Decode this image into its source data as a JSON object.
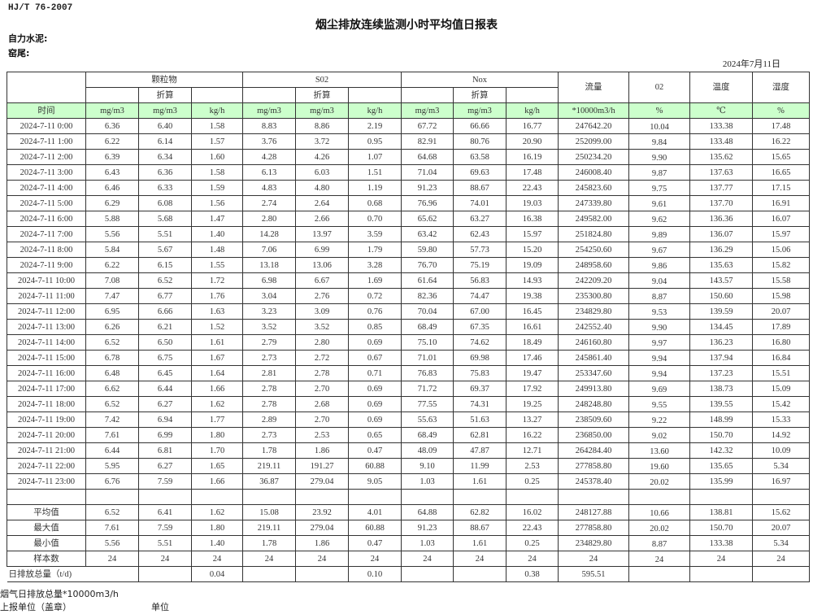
{
  "header": {
    "standard": "HJ/T  76-2007",
    "title": "烟尘排放连续监测小时平均值日报表",
    "company_label": "自力水泥:",
    "location_label": "窑尾:",
    "report_date": "2024年7月11日"
  },
  "table": {
    "groups": {
      "particulate": "颗粒物",
      "so2": "S02",
      "nox": "Nox",
      "flow": "流量",
      "o2": "02",
      "temp": "温度",
      "humidity": "湿度"
    },
    "converted_label": "折算",
    "units": [
      "时间",
      "mg/m3",
      "mg/m3",
      "kg/h",
      "mg/m3",
      "mg/m3",
      "kg/h",
      "mg/m3",
      "mg/m3",
      "kg/h",
      "*10000m3/h",
      "%",
      "℃",
      "%"
    ],
    "rows": [
      [
        "2024-7-11 0:00",
        "6.36",
        "6.40",
        "1.58",
        "8.83",
        "8.86",
        "2.19",
        "67.72",
        "66.66",
        "16.77",
        "247642.20",
        "10.04",
        "133.38",
        "17.48"
      ],
      [
        "2024-7-11 1:00",
        "6.22",
        "6.14",
        "1.57",
        "3.76",
        "3.72",
        "0.95",
        "82.91",
        "80.76",
        "20.90",
        "252099.00",
        "9.84",
        "133.48",
        "16.22"
      ],
      [
        "2024-7-11 2:00",
        "6.39",
        "6.34",
        "1.60",
        "4.28",
        "4.26",
        "1.07",
        "64.68",
        "63.58",
        "16.19",
        "250234.20",
        "9.90",
        "135.62",
        "15.65"
      ],
      [
        "2024-7-11 3:00",
        "6.43",
        "6.36",
        "1.58",
        "6.13",
        "6.03",
        "1.51",
        "71.04",
        "69.63",
        "17.48",
        "246008.40",
        "9.87",
        "137.63",
        "16.65"
      ],
      [
        "2024-7-11 4:00",
        "6.46",
        "6.33",
        "1.59",
        "4.83",
        "4.80",
        "1.19",
        "91.23",
        "88.67",
        "22.43",
        "245823.60",
        "9.75",
        "137.77",
        "17.15"
      ],
      [
        "2024-7-11 5:00",
        "6.29",
        "6.08",
        "1.56",
        "2.74",
        "2.64",
        "0.68",
        "76.96",
        "74.01",
        "19.03",
        "247339.80",
        "9.61",
        "137.70",
        "16.91"
      ],
      [
        "2024-7-11 6:00",
        "5.88",
        "5.68",
        "1.47",
        "2.80",
        "2.66",
        "0.70",
        "65.62",
        "63.27",
        "16.38",
        "249582.00",
        "9.62",
        "136.36",
        "16.07"
      ],
      [
        "2024-7-11 7:00",
        "5.56",
        "5.51",
        "1.40",
        "14.28",
        "13.97",
        "3.59",
        "63.42",
        "62.43",
        "15.97",
        "251824.80",
        "9.89",
        "136.07",
        "15.97"
      ],
      [
        "2024-7-11 8:00",
        "5.84",
        "5.67",
        "1.48",
        "7.06",
        "6.99",
        "1.79",
        "59.80",
        "57.73",
        "15.20",
        "254250.60",
        "9.67",
        "136.29",
        "15.06"
      ],
      [
        "2024-7-11 9:00",
        "6.22",
        "6.15",
        "1.55",
        "13.18",
        "13.06",
        "3.28",
        "76.70",
        "75.19",
        "19.09",
        "248958.60",
        "9.86",
        "135.63",
        "15.82"
      ],
      [
        "2024-7-11 10:00",
        "7.08",
        "6.52",
        "1.72",
        "6.98",
        "6.67",
        "1.69",
        "61.64",
        "56.83",
        "14.93",
        "242209.20",
        "9.04",
        "143.57",
        "15.58"
      ],
      [
        "2024-7-11 11:00",
        "7.47",
        "6.77",
        "1.76",
        "3.04",
        "2.76",
        "0.72",
        "82.36",
        "74.47",
        "19.38",
        "235300.80",
        "8.87",
        "150.60",
        "15.98"
      ],
      [
        "2024-7-11 12:00",
        "6.95",
        "6.66",
        "1.63",
        "3.23",
        "3.09",
        "0.76",
        "70.04",
        "67.00",
        "16.45",
        "234829.80",
        "9.53",
        "139.59",
        "20.07"
      ],
      [
        "2024-7-11 13:00",
        "6.26",
        "6.21",
        "1.52",
        "3.52",
        "3.52",
        "0.85",
        "68.49",
        "67.35",
        "16.61",
        "242552.40",
        "9.90",
        "134.45",
        "17.89"
      ],
      [
        "2024-7-11 14:00",
        "6.52",
        "6.50",
        "1.61",
        "2.79",
        "2.80",
        "0.69",
        "75.10",
        "74.62",
        "18.49",
        "246160.80",
        "9.97",
        "136.23",
        "16.80"
      ],
      [
        "2024-7-11 15:00",
        "6.78",
        "6.75",
        "1.67",
        "2.73",
        "2.72",
        "0.67",
        "71.01",
        "69.98",
        "17.46",
        "245861.40",
        "9.94",
        "137.94",
        "16.84"
      ],
      [
        "2024-7-11 16:00",
        "6.48",
        "6.45",
        "1.64",
        "2.81",
        "2.78",
        "0.71",
        "76.83",
        "75.83",
        "19.47",
        "253347.60",
        "9.94",
        "137.23",
        "15.51"
      ],
      [
        "2024-7-11 17:00",
        "6.62",
        "6.44",
        "1.66",
        "2.78",
        "2.70",
        "0.69",
        "71.72",
        "69.37",
        "17.92",
        "249913.80",
        "9.69",
        "138.73",
        "15.09"
      ],
      [
        "2024-7-11 18:00",
        "6.52",
        "6.27",
        "1.62",
        "2.78",
        "2.68",
        "0.69",
        "77.55",
        "74.31",
        "19.25",
        "248248.80",
        "9.55",
        "139.55",
        "15.42"
      ],
      [
        "2024-7-11 19:00",
        "7.42",
        "6.94",
        "1.77",
        "2.89",
        "2.70",
        "0.69",
        "55.63",
        "51.63",
        "13.27",
        "238509.60",
        "9.22",
        "148.99",
        "15.33"
      ],
      [
        "2024-7-11 20:00",
        "7.61",
        "6.99",
        "1.80",
        "2.73",
        "2.53",
        "0.65",
        "68.49",
        "62.81",
        "16.22",
        "236850.00",
        "9.02",
        "150.70",
        "14.92"
      ],
      [
        "2024-7-11 21:00",
        "6.44",
        "6.81",
        "1.70",
        "1.78",
        "1.86",
        "0.47",
        "48.09",
        "47.87",
        "12.71",
        "264284.40",
        "13.60",
        "142.32",
        "10.09"
      ],
      [
        "2024-7-11 22:00",
        "5.95",
        "6.27",
        "1.65",
        "219.11",
        "191.27",
        "60.88",
        "9.10",
        "11.99",
        "2.53",
        "277858.80",
        "19.60",
        "135.65",
        "5.34"
      ],
      [
        "2024-7-11 23:00",
        "6.76",
        "7.59",
        "1.66",
        "36.87",
        "279.04",
        "9.05",
        "1.03",
        "1.61",
        "0.25",
        "245378.40",
        "20.02",
        "135.99",
        "16.97"
      ]
    ],
    "summary": [
      [
        "平均值",
        "6.52",
        "6.41",
        "1.62",
        "15.08",
        "23.92",
        "4.01",
        "64.88",
        "62.82",
        "16.02",
        "248127.88",
        "10.66",
        "138.81",
        "15.62"
      ],
      [
        "最大值",
        "7.61",
        "7.59",
        "1.80",
        "219.11",
        "279.04",
        "60.88",
        "91.23",
        "88.67",
        "22.43",
        "277858.80",
        "20.02",
        "150.70",
        "20.07"
      ],
      [
        "最小值",
        "5.56",
        "5.51",
        "1.40",
        "1.78",
        "1.86",
        "0.47",
        "1.03",
        "1.61",
        "0.25",
        "234829.80",
        "8.87",
        "133.38",
        "5.34"
      ],
      [
        "样本数",
        "24",
        "24",
        "24",
        "24",
        "24",
        "24",
        "24",
        "24",
        "24",
        "24",
        "24",
        "24",
        "24"
      ]
    ],
    "daily_total": {
      "label": "日排放总量（t/d)",
      "values": [
        "",
        "0.04",
        "",
        "",
        "0.10",
        "",
        "",
        "0.38",
        "595.51",
        "",
        "",
        ""
      ]
    }
  },
  "footer": {
    "flue_gas_total": "烟气日排放总量*10000m3/h",
    "reporting_unit": "上报单位（盖章）",
    "unit": "单位"
  }
}
